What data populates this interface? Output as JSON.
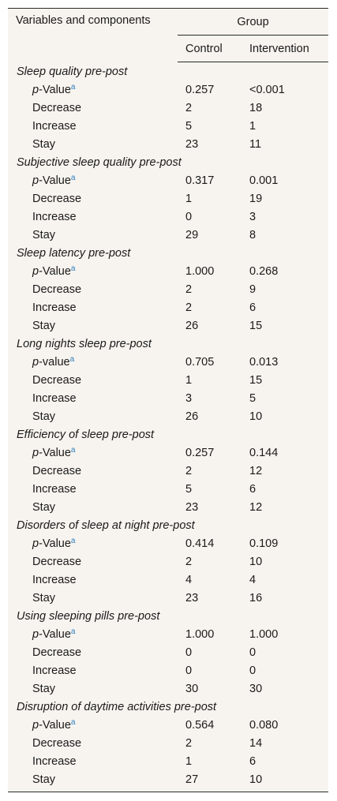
{
  "table": {
    "header": {
      "variables_label": "Variables and components",
      "group_label": "Group",
      "control_label": "Control",
      "intervention_label": "Intervention"
    },
    "sections": [
      {
        "title": "Sleep quality pre-post",
        "rows": [
          {
            "label": "-Value",
            "label_prefix": "p",
            "sup": "a",
            "control": "0.257",
            "intervention": "<0.001"
          },
          {
            "label": "Decrease",
            "control": "2",
            "intervention": "18"
          },
          {
            "label": "Increase",
            "control": "5",
            "intervention": "1"
          },
          {
            "label": "Stay",
            "control": "23",
            "intervention": "11"
          }
        ]
      },
      {
        "title": "Subjective sleep quality pre-post",
        "rows": [
          {
            "label": "-Value",
            "label_prefix": "p",
            "sup": "a",
            "control": "0.317",
            "intervention": "0.001"
          },
          {
            "label": "Decrease",
            "control": "1",
            "intervention": "19"
          },
          {
            "label": "Increase",
            "control": "0",
            "intervention": "3"
          },
          {
            "label": "Stay",
            "control": "29",
            "intervention": "8"
          }
        ]
      },
      {
        "title": "Sleep latency pre-post",
        "rows": [
          {
            "label": "-Value",
            "label_prefix": "p",
            "sup": "a",
            "control": "1.000",
            "intervention": "0.268"
          },
          {
            "label": "Decrease",
            "control": "2",
            "intervention": "9"
          },
          {
            "label": "Increase",
            "control": "2",
            "intervention": "6"
          },
          {
            "label": "Stay",
            "control": "26",
            "intervention": "15"
          }
        ]
      },
      {
        "title": "Long nights sleep pre-post",
        "rows": [
          {
            "label": "-value",
            "label_prefix": "p",
            "sup": "a",
            "control": "0.705",
            "intervention": "0.013"
          },
          {
            "label": "Decrease",
            "control": "1",
            "intervention": "15"
          },
          {
            "label": "Increase",
            "control": "3",
            "intervention": "5"
          },
          {
            "label": "Stay",
            "control": "26",
            "intervention": "10"
          }
        ]
      },
      {
        "title": "Efficiency of sleep pre-post",
        "rows": [
          {
            "label": "-Value",
            "label_prefix": "p",
            "sup": "a",
            "control": "0.257",
            "intervention": "0.144"
          },
          {
            "label": "Decrease",
            "control": "2",
            "intervention": "12"
          },
          {
            "label": "Increase",
            "control": "5",
            "intervention": "6"
          },
          {
            "label": "Stay",
            "control": "23",
            "intervention": "12"
          }
        ]
      },
      {
        "title": "Disorders of sleep at night pre-post",
        "rows": [
          {
            "label": "-Value",
            "label_prefix": "p",
            "sup": "a",
            "control": "0.414",
            "intervention": "0.109"
          },
          {
            "label": "Decrease",
            "control": "2",
            "intervention": "10"
          },
          {
            "label": "Increase",
            "control": "4",
            "intervention": "4"
          },
          {
            "label": "Stay",
            "control": "23",
            "intervention": "16"
          }
        ]
      },
      {
        "title": "Using sleeping pills pre-post",
        "rows": [
          {
            "label": "-Value",
            "label_prefix": "p",
            "sup": "a",
            "control": "1.000",
            "intervention": "1.000"
          },
          {
            "label": "Decrease",
            "control": "0",
            "intervention": "0"
          },
          {
            "label": "Increase",
            "control": "0",
            "intervention": "0"
          },
          {
            "label": "Stay",
            "control": "30",
            "intervention": "30"
          }
        ]
      },
      {
        "title": "Disruption of daytime activities pre-post",
        "rows": [
          {
            "label": "-Value",
            "label_prefix": "p",
            "sup": "a",
            "control": "0.564",
            "intervention": "0.080"
          },
          {
            "label": "Decrease",
            "control": "2",
            "intervention": "14"
          },
          {
            "label": "Increase",
            "control": "1",
            "intervention": "6"
          },
          {
            "label": "Stay",
            "control": "27",
            "intervention": "10"
          }
        ]
      }
    ]
  },
  "colors": {
    "background": "#f7f4ef",
    "rule": "#2a2a2a",
    "footnote_link": "#2f7fbf"
  }
}
